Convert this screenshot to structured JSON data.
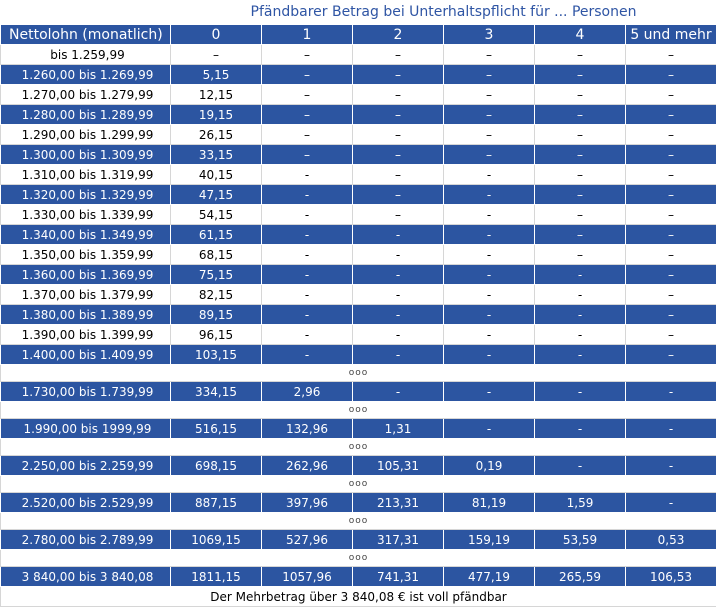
{
  "title": "Pfändbarer Betrag bei Unterhaltspflicht für ... Personen",
  "columns": [
    "Nettolohn (monatlich)",
    "0",
    "1",
    "2",
    "3",
    "4",
    "5 und mehr"
  ],
  "rows": [
    {
      "kind": "light",
      "cells": [
        "bis 1.259,99",
        "–",
        "–",
        "–",
        "–",
        "–",
        "–"
      ]
    },
    {
      "kind": "dark",
      "cells": [
        "1.260,00 bis 1.269,99",
        "5,15",
        "–",
        "–",
        "–",
        "–",
        "–"
      ]
    },
    {
      "kind": "light",
      "cells": [
        "1.270,00 bis 1.279,99",
        "12,15",
        "–",
        "–",
        "–",
        "–",
        "–"
      ]
    },
    {
      "kind": "dark",
      "cells": [
        "1.280,00 bis 1.289,99",
        "19,15",
        "–",
        "–",
        "–",
        "–",
        "–"
      ]
    },
    {
      "kind": "light",
      "cells": [
        "1.290,00 bis 1.299,99",
        "26,15",
        "–",
        "–",
        "–",
        "–",
        "–"
      ]
    },
    {
      "kind": "dark",
      "cells": [
        "1.300,00 bis 1.309,99",
        "33,15",
        "–",
        "–",
        "–",
        "–",
        "–"
      ]
    },
    {
      "kind": "light",
      "cells": [
        "1.310,00 bis 1.319,99",
        "40,15",
        "-",
        "–",
        "-",
        "–",
        "–"
      ]
    },
    {
      "kind": "dark",
      "cells": [
        "1.320,00 bis 1.329,99",
        "47,15",
        "-",
        "–",
        "-",
        "–",
        "–"
      ]
    },
    {
      "kind": "light",
      "cells": [
        "1.330,00 bis 1.339,99",
        "54,15",
        "-",
        "–",
        "-",
        "–",
        "–"
      ]
    },
    {
      "kind": "dark",
      "cells": [
        "1.340,00 bis 1.349,99",
        "61,15",
        "-",
        "-",
        "-",
        "–",
        "–"
      ]
    },
    {
      "kind": "light",
      "cells": [
        "1.350,00 bis 1.359,99",
        "68,15",
        "-",
        "-",
        "-",
        "–",
        "–"
      ]
    },
    {
      "kind": "dark",
      "cells": [
        "1.360,00 bis 1.369,99",
        "75,15",
        "-",
        "-",
        "-",
        "-",
        "–"
      ]
    },
    {
      "kind": "light",
      "cells": [
        "1.370,00 bis 1.379,99",
        "82,15",
        "-",
        "-",
        "-",
        "-",
        "–"
      ]
    },
    {
      "kind": "dark",
      "cells": [
        "1.380,00 bis 1.389,99",
        "89,15",
        "-",
        "-",
        "-",
        "-",
        "–"
      ]
    },
    {
      "kind": "light",
      "cells": [
        "1.390,00 bis 1.399,99",
        "96,15",
        "-",
        "-",
        "-",
        "-",
        "–"
      ]
    },
    {
      "kind": "dark",
      "cells": [
        "1.400,00 bis 1.409,99",
        "103,15",
        "-",
        "-",
        "-",
        "-",
        "–"
      ]
    },
    {
      "kind": "sep",
      "cells": [
        "ooo"
      ]
    },
    {
      "kind": "dark",
      "cells": [
        "1.730,00 bis 1.739,99",
        "334,15",
        "2,96",
        "-",
        "-",
        "-",
        "-"
      ]
    },
    {
      "kind": "sep",
      "cells": [
        "ooo"
      ]
    },
    {
      "kind": "dark",
      "cells": [
        "1.990,00 bis 1999,99",
        "516,15",
        "132,96",
        "1,31",
        "-",
        "-",
        "-"
      ]
    },
    {
      "kind": "sep",
      "cells": [
        "ooo"
      ]
    },
    {
      "kind": "dark",
      "cells": [
        "2.250,00 bis 2.259,99",
        "698,15",
        "262,96",
        "105,31",
        "0,19",
        "-",
        "-"
      ]
    },
    {
      "kind": "sep",
      "cells": [
        "ooo"
      ]
    },
    {
      "kind": "dark",
      "cells": [
        "2.520,00 bis 2.529,99",
        "887,15",
        "397,96",
        "213,31",
        "81,19",
        "1,59",
        "-"
      ]
    },
    {
      "kind": "sep",
      "cells": [
        "ooo"
      ]
    },
    {
      "kind": "dark",
      "cells": [
        "2.780,00 bis 2.789,99",
        "1069,15",
        "527,96",
        "317,31",
        "159,19",
        "53,59",
        "0,53"
      ]
    },
    {
      "kind": "sep",
      "cells": [
        "ooo"
      ]
    },
    {
      "kind": "dark",
      "cells": [
        "3 840,00 bis 3 840,08",
        "1811,15",
        "1057,96",
        "741,31",
        "477,19",
        "265,59",
        "106,53"
      ]
    }
  ],
  "footer": "Der Mehrbetrag über 3 840,08 € ist voll pfändbar"
}
